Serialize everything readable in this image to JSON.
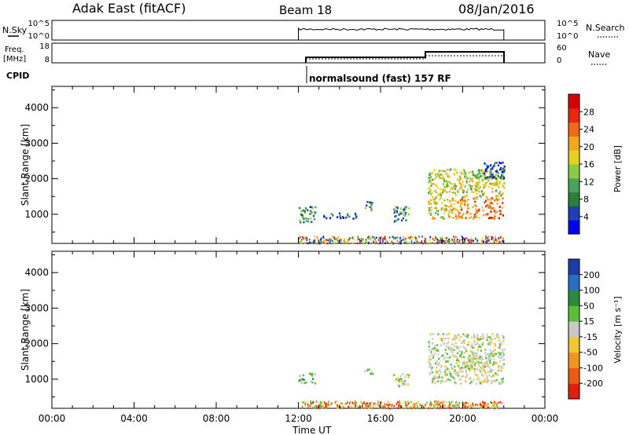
{
  "header": {
    "station": "Adak East (fitACF)",
    "beam": "Beam 18",
    "date": "08/Jan/2016"
  },
  "nsky_panel": {
    "left_label": "N.Sky",
    "right_label": "N.Search",
    "left_ticks": [
      "10^5",
      "10^0"
    ],
    "right_ticks": [
      "10^5",
      "10^0"
    ]
  },
  "freq_panel": {
    "left_label_line1": "Freq.",
    "left_label_line2": "[MHz]",
    "right_label": "Nave",
    "left_ticks": [
      "18",
      "8"
    ],
    "right_ticks": [
      "60",
      "0"
    ]
  },
  "cpid": {
    "label": "CPID",
    "text": "normalsound (fast) 157 RF"
  },
  "time_axis": {
    "label": "Time UT",
    "ticks": [
      "00:00",
      "04:00",
      "08:00",
      "12:00",
      "16:00",
      "20:00",
      "00:00"
    ]
  },
  "chart_data": [
    {
      "type": "heatmap",
      "quantity": "Power",
      "ylabel": "Slant Range [km]",
      "colorbar_label": "Power [dB]",
      "x_range_hours": [
        0,
        24
      ],
      "y_range_km": [
        180,
        4600
      ],
      "y_ticks": [
        "1000",
        "2000",
        "3000",
        "4000"
      ],
      "colorbar_ticks": [
        "4",
        "8",
        "12",
        "16",
        "20",
        "24",
        "28"
      ],
      "colorbar_colors": [
        "#0000ff",
        "#1c3fb5",
        "#2a7f3a",
        "#4aa35a",
        "#8ccc40",
        "#e6d21e",
        "#f0a81e",
        "#ee6a1a",
        "#e62a12",
        "#d80000"
      ],
      "echo_regions": [
        {
          "t_start": 12.0,
          "t_end": 12.8,
          "r_min": 800,
          "r_max": 1250,
          "level": 0.25
        },
        {
          "t_start": 13.2,
          "t_end": 14.8,
          "r_min": 900,
          "r_max": 1050,
          "level": 0.2
        },
        {
          "t_start": 15.2,
          "t_end": 15.6,
          "r_min": 1100,
          "r_max": 1400,
          "level": 0.3
        },
        {
          "t_start": 16.6,
          "t_end": 17.4,
          "r_min": 800,
          "r_max": 1250,
          "level": 0.3
        },
        {
          "t_start": 18.3,
          "t_end": 22.0,
          "r_min": 900,
          "r_max": 2300,
          "level": 0.5
        },
        {
          "t_start": 21.0,
          "t_end": 22.0,
          "r_min": 2000,
          "r_max": 2500,
          "level": 0.15
        }
      ]
    },
    {
      "type": "heatmap",
      "quantity": "Velocity",
      "ylabel": "Slant Range [km]",
      "colorbar_label": "Velocity [m s⁻¹]",
      "x_range_hours": [
        0,
        24
      ],
      "y_range_km": [
        180,
        4600
      ],
      "y_ticks": [
        "1000",
        "2000",
        "3000",
        "4000"
      ],
      "colorbar_ticks": [
        "200",
        "100",
        "50",
        "15",
        "-15",
        "-50",
        "-100",
        "-200"
      ],
      "colorbar_colors": [
        "#1e3ca8",
        "#2a6ec0",
        "#2e8a3a",
        "#5cbf3c",
        "#c8c8c8",
        "#f0c832",
        "#f0961e",
        "#ee5a14",
        "#e01e0e"
      ],
      "echo_regions": [
        {
          "t_start": 12.0,
          "t_end": 12.8,
          "r_min": 900,
          "r_max": 1200,
          "level": "green"
        },
        {
          "t_start": 15.2,
          "t_end": 15.6,
          "r_min": 1100,
          "r_max": 1300,
          "level": "green"
        },
        {
          "t_start": 16.6,
          "t_end": 17.4,
          "r_min": 800,
          "r_max": 1200,
          "level": "gray"
        },
        {
          "t_start": 18.3,
          "t_end": 22.0,
          "r_min": 900,
          "r_max": 2300,
          "level": "gray"
        }
      ]
    }
  ]
}
